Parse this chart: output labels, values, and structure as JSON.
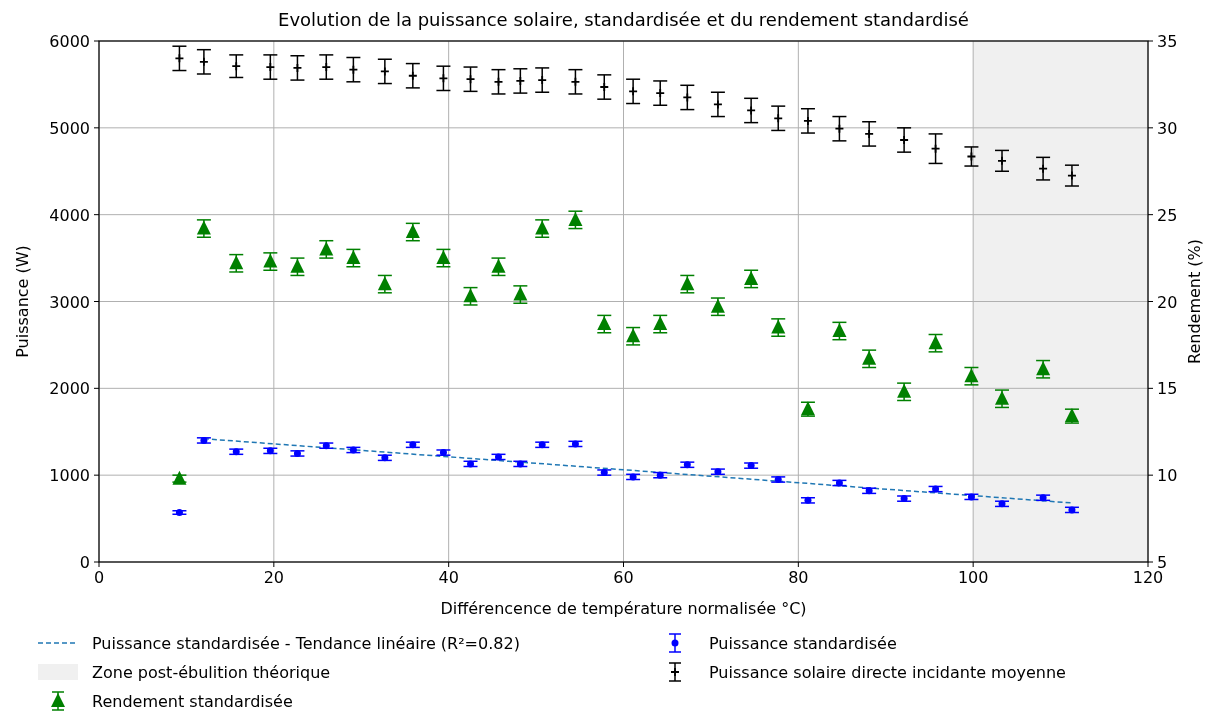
{
  "chart_data": {
    "type": "scatter",
    "title": "Evolution de la puissance solaire, standardisée et du rendement standardisé",
    "xlabel": "Différencence de température normalisée °C)",
    "ylabel": "Puissance (W)",
    "y2label": "Rendement (%)",
    "xlim": [
      0,
      120
    ],
    "xticks": [
      0,
      20,
      40,
      60,
      80,
      100,
      120
    ],
    "ylim": [
      0,
      6000
    ],
    "yticks": [
      0,
      1000,
      2000,
      3000,
      4000,
      5000,
      6000
    ],
    "y2lim": [
      5,
      35
    ],
    "y2ticks": [
      5,
      10,
      15,
      20,
      25,
      30,
      35
    ],
    "grid": true,
    "legend": "bottom",
    "bands": [
      {
        "axis": "x",
        "from": 100,
        "to": 120,
        "label": "Zone post-ébulition théorique",
        "color": "#f0f0f0"
      }
    ],
    "series": [
      {
        "name": "Puissance standardisée - Tendance linéaire (R²=0.82)",
        "type": "line",
        "color": "#1f77b4",
        "line_style": "dashed",
        "marker": "none",
        "x": [
          12.0,
          111.3
        ],
        "values": [
          1420,
          680
        ]
      },
      {
        "name": "Rendement standardisée",
        "axis": "y2",
        "color": "#008000",
        "marker": "triangle",
        "x": [
          9.2,
          12.0,
          15.7,
          19.6,
          22.7,
          26.0,
          29.1,
          32.7,
          35.9,
          39.4,
          42.5,
          45.7,
          48.2,
          50.7,
          54.5,
          57.8,
          61.1,
          64.2,
          67.3,
          70.8,
          74.6,
          77.7,
          81.1,
          84.7,
          88.1,
          92.1,
          95.7,
          99.8,
          103.3,
          108.0,
          111.3
        ],
        "values": [
          9.8,
          24.2,
          22.2,
          22.3,
          22.0,
          23.0,
          22.5,
          21.0,
          24.0,
          22.5,
          20.3,
          22.0,
          20.4,
          24.2,
          24.7,
          18.7,
          18.0,
          18.7,
          21.0,
          19.7,
          21.3,
          18.5,
          13.8,
          18.3,
          16.7,
          14.8,
          17.6,
          15.7,
          14.4,
          16.1,
          13.4
        ],
        "errors": [
          0.2,
          0.5,
          0.5,
          0.5,
          0.5,
          0.5,
          0.5,
          0.5,
          0.5,
          0.5,
          0.5,
          0.5,
          0.5,
          0.5,
          0.5,
          0.5,
          0.5,
          0.5,
          0.5,
          0.5,
          0.5,
          0.5,
          0.4,
          0.5,
          0.5,
          0.5,
          0.5,
          0.5,
          0.5,
          0.5,
          0.4
        ]
      },
      {
        "name": "Puissance standardisée",
        "color": "#0000ff",
        "marker": "circle",
        "x": [
          9.2,
          12.0,
          15.7,
          19.6,
          22.7,
          26.0,
          29.1,
          32.7,
          35.9,
          39.4,
          42.5,
          45.7,
          48.2,
          50.7,
          54.5,
          57.8,
          61.1,
          64.2,
          67.3,
          70.8,
          74.6,
          77.7,
          81.1,
          84.7,
          88.1,
          92.1,
          95.7,
          99.8,
          103.3,
          108.0,
          111.3
        ],
        "values": [
          570,
          1400,
          1270,
          1280,
          1250,
          1340,
          1290,
          1200,
          1350,
          1260,
          1130,
          1210,
          1130,
          1350,
          1360,
          1030,
          980,
          1000,
          1120,
          1040,
          1110,
          950,
          710,
          910,
          820,
          730,
          840,
          750,
          670,
          740,
          600
        ],
        "errors": [
          20,
          30,
          30,
          30,
          30,
          30,
          30,
          30,
          30,
          30,
          30,
          30,
          30,
          30,
          30,
          30,
          30,
          30,
          30,
          30,
          30,
          30,
          30,
          30,
          30,
          30,
          30,
          30,
          30,
          30,
          30
        ]
      },
      {
        "name": "Puissance solaire directe incidante moyenne",
        "color": "#000000",
        "marker": "cross",
        "x": [
          9.2,
          12.0,
          15.7,
          19.6,
          22.7,
          26.0,
          29.1,
          32.7,
          35.9,
          39.4,
          42.5,
          45.7,
          48.2,
          50.7,
          54.5,
          57.8,
          61.1,
          64.2,
          67.3,
          70.8,
          74.6,
          77.7,
          81.1,
          84.7,
          88.1,
          92.1,
          95.7,
          99.8,
          103.3,
          108.0,
          111.3
        ],
        "values": [
          5800,
          5760,
          5710,
          5700,
          5690,
          5700,
          5670,
          5650,
          5600,
          5570,
          5560,
          5530,
          5540,
          5550,
          5530,
          5470,
          5420,
          5400,
          5350,
          5270,
          5200,
          5110,
          5080,
          4990,
          4930,
          4860,
          4760,
          4670,
          4620,
          4530,
          4450
        ],
        "errors": [
          140,
          140,
          130,
          140,
          140,
          140,
          140,
          140,
          140,
          140,
          140,
          140,
          140,
          140,
          140,
          140,
          140,
          140,
          140,
          140,
          140,
          140,
          140,
          140,
          140,
          140,
          170,
          110,
          120,
          130,
          120
        ]
      }
    ]
  }
}
